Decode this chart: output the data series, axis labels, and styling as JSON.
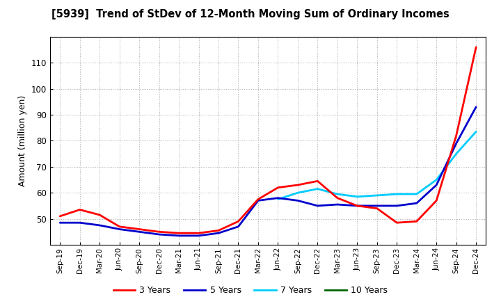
{
  "title": "[5939]  Trend of StDev of 12-Month Moving Sum of Ordinary Incomes",
  "ylabel": "Amount (million yen)",
  "background_color": "#ffffff",
  "grid_color": "#aaaaaa",
  "legend_labels": [
    "3 Years",
    "5 Years",
    "7 Years",
    "10 Years"
  ],
  "legend_colors": [
    "#ff0000",
    "#0000cc",
    "#00ccff",
    "#006600"
  ],
  "x_labels": [
    "Sep-19",
    "Dec-19",
    "Mar-20",
    "Jun-20",
    "Sep-20",
    "Dec-20",
    "Mar-21",
    "Jun-21",
    "Sep-21",
    "Dec-21",
    "Mar-22",
    "Jun-22",
    "Sep-22",
    "Dec-22",
    "Mar-23",
    "Jun-23",
    "Sep-23",
    "Dec-23",
    "Mar-24",
    "Jun-24",
    "Sep-24",
    "Dec-24"
  ],
  "ylim": [
    40,
    120
  ],
  "yticks": [
    50,
    60,
    70,
    80,
    90,
    100,
    110
  ],
  "series_3y": [
    51.0,
    53.5,
    51.5,
    47.0,
    46.0,
    45.0,
    44.5,
    44.5,
    45.5,
    49.0,
    57.5,
    62.0,
    63.0,
    64.5,
    58.0,
    55.0,
    54.0,
    48.5,
    49.0,
    57.0,
    82.0,
    116.0
  ],
  "series_5y": [
    48.5,
    48.5,
    47.5,
    46.0,
    45.0,
    44.0,
    43.5,
    43.5,
    44.5,
    47.0,
    57.0,
    58.0,
    57.0,
    55.0,
    55.5,
    55.0,
    55.0,
    55.0,
    56.0,
    63.0,
    79.0,
    93.0
  ],
  "series_7y": [
    null,
    null,
    null,
    null,
    null,
    null,
    null,
    null,
    null,
    null,
    null,
    57.5,
    60.0,
    61.5,
    59.5,
    58.5,
    59.0,
    59.5,
    59.5,
    65.0,
    75.0,
    83.5
  ],
  "series_10y": [
    null,
    null,
    null,
    null,
    null,
    null,
    null,
    null,
    null,
    null,
    null,
    null,
    null,
    null,
    null,
    null,
    null,
    null,
    null,
    null,
    null,
    null
  ]
}
